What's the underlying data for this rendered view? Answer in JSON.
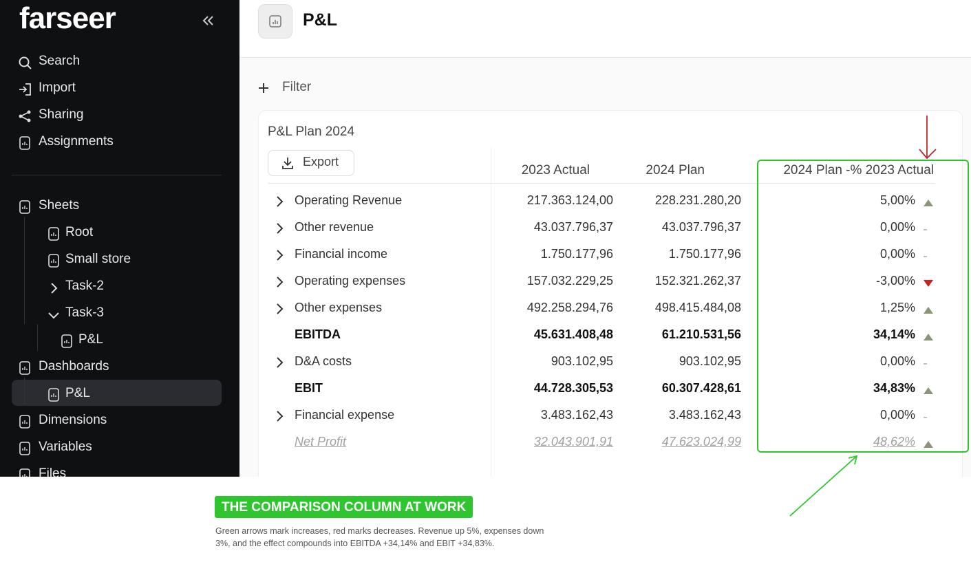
{
  "sidebar": {
    "logo": "farseer",
    "nav": [
      "Search",
      "Import",
      "Sharing",
      "Assignments"
    ],
    "tree": [
      {
        "label": "Sheets",
        "level": 0
      },
      {
        "label": "Root",
        "level": 1
      },
      {
        "label": "Small store",
        "level": 1
      },
      {
        "label": "Task-2",
        "level": 1,
        "toggle": "closed"
      },
      {
        "label": "Task-3",
        "level": 1,
        "toggle": "open"
      },
      {
        "label": "P&L",
        "level": 2
      },
      {
        "label": "Dashboards",
        "level": 0
      },
      {
        "label": "P&L",
        "level": 1,
        "selected": true
      },
      {
        "label": "Dimensions",
        "level": 0
      },
      {
        "label": "Variables",
        "level": 0
      },
      {
        "label": "Files",
        "level": 0
      }
    ]
  },
  "header": {
    "title": "P&L"
  },
  "filter": "Filter",
  "table": {
    "title": "P&L Plan 2024",
    "export": "Export",
    "columns": [
      "2023 Actual",
      "2024 Plan",
      "2024 Plan -% 2023 Actual"
    ],
    "rows": [
      {
        "label": "Operating Revenue",
        "actual": "217.363.124,00",
        "plan": "228.231.280,20",
        "change": "5,00%",
        "trend": "up",
        "expandable": true
      },
      {
        "label": "Other revenue",
        "actual": "43.037.796,37",
        "plan": "43.037.796,37",
        "change": "0,00%",
        "trend": "none",
        "expandable": true
      },
      {
        "label": "Financial income",
        "actual": "1.750.177,96",
        "plan": "1.750.177,96",
        "change": "0,00%",
        "trend": "none",
        "expandable": true
      },
      {
        "label": "Operating expenses",
        "actual": "157.032.229,25",
        "plan": "152.321.262,37",
        "change": "-3,00%",
        "trend": "down",
        "expandable": true
      },
      {
        "label": "Other expenses",
        "actual": "492.258.294,76",
        "plan": "498.415.484,08",
        "change": "1,25%",
        "trend": "up",
        "expandable": true
      },
      {
        "label": "EBITDA",
        "actual": "45.631.408,48",
        "plan": "61.210.531,56",
        "change": "34,14%",
        "trend": "up",
        "style": "bold"
      },
      {
        "label": "D&A costs",
        "actual": "903.102,95",
        "plan": "903.102,95",
        "change": "0,00%",
        "trend": "none",
        "expandable": true
      },
      {
        "label": "EBIT",
        "actual": "44.728.305,53",
        "plan": "60.307.428,61",
        "change": "34,83%",
        "trend": "up",
        "style": "bold"
      },
      {
        "label": "Financial expense",
        "actual": "3.483.162,43",
        "plan": "3.483.162,43",
        "change": "0,00%",
        "trend": "none",
        "expandable": true
      },
      {
        "label": "Net Profit",
        "actual": "32.043.901,91",
        "plan": "47.623.024,99",
        "change": "48,62%",
        "trend": "up",
        "style": "muted"
      }
    ]
  },
  "annotation": {
    "tag": "THE COMPARISON COLUMN AT WORK",
    "caption": "Green arrows mark increases, red marks decreases. Revenue up 5%, expenses down 3%, and the effect compounds into EBITDA +34,14% and EBIT +34,83%."
  }
}
